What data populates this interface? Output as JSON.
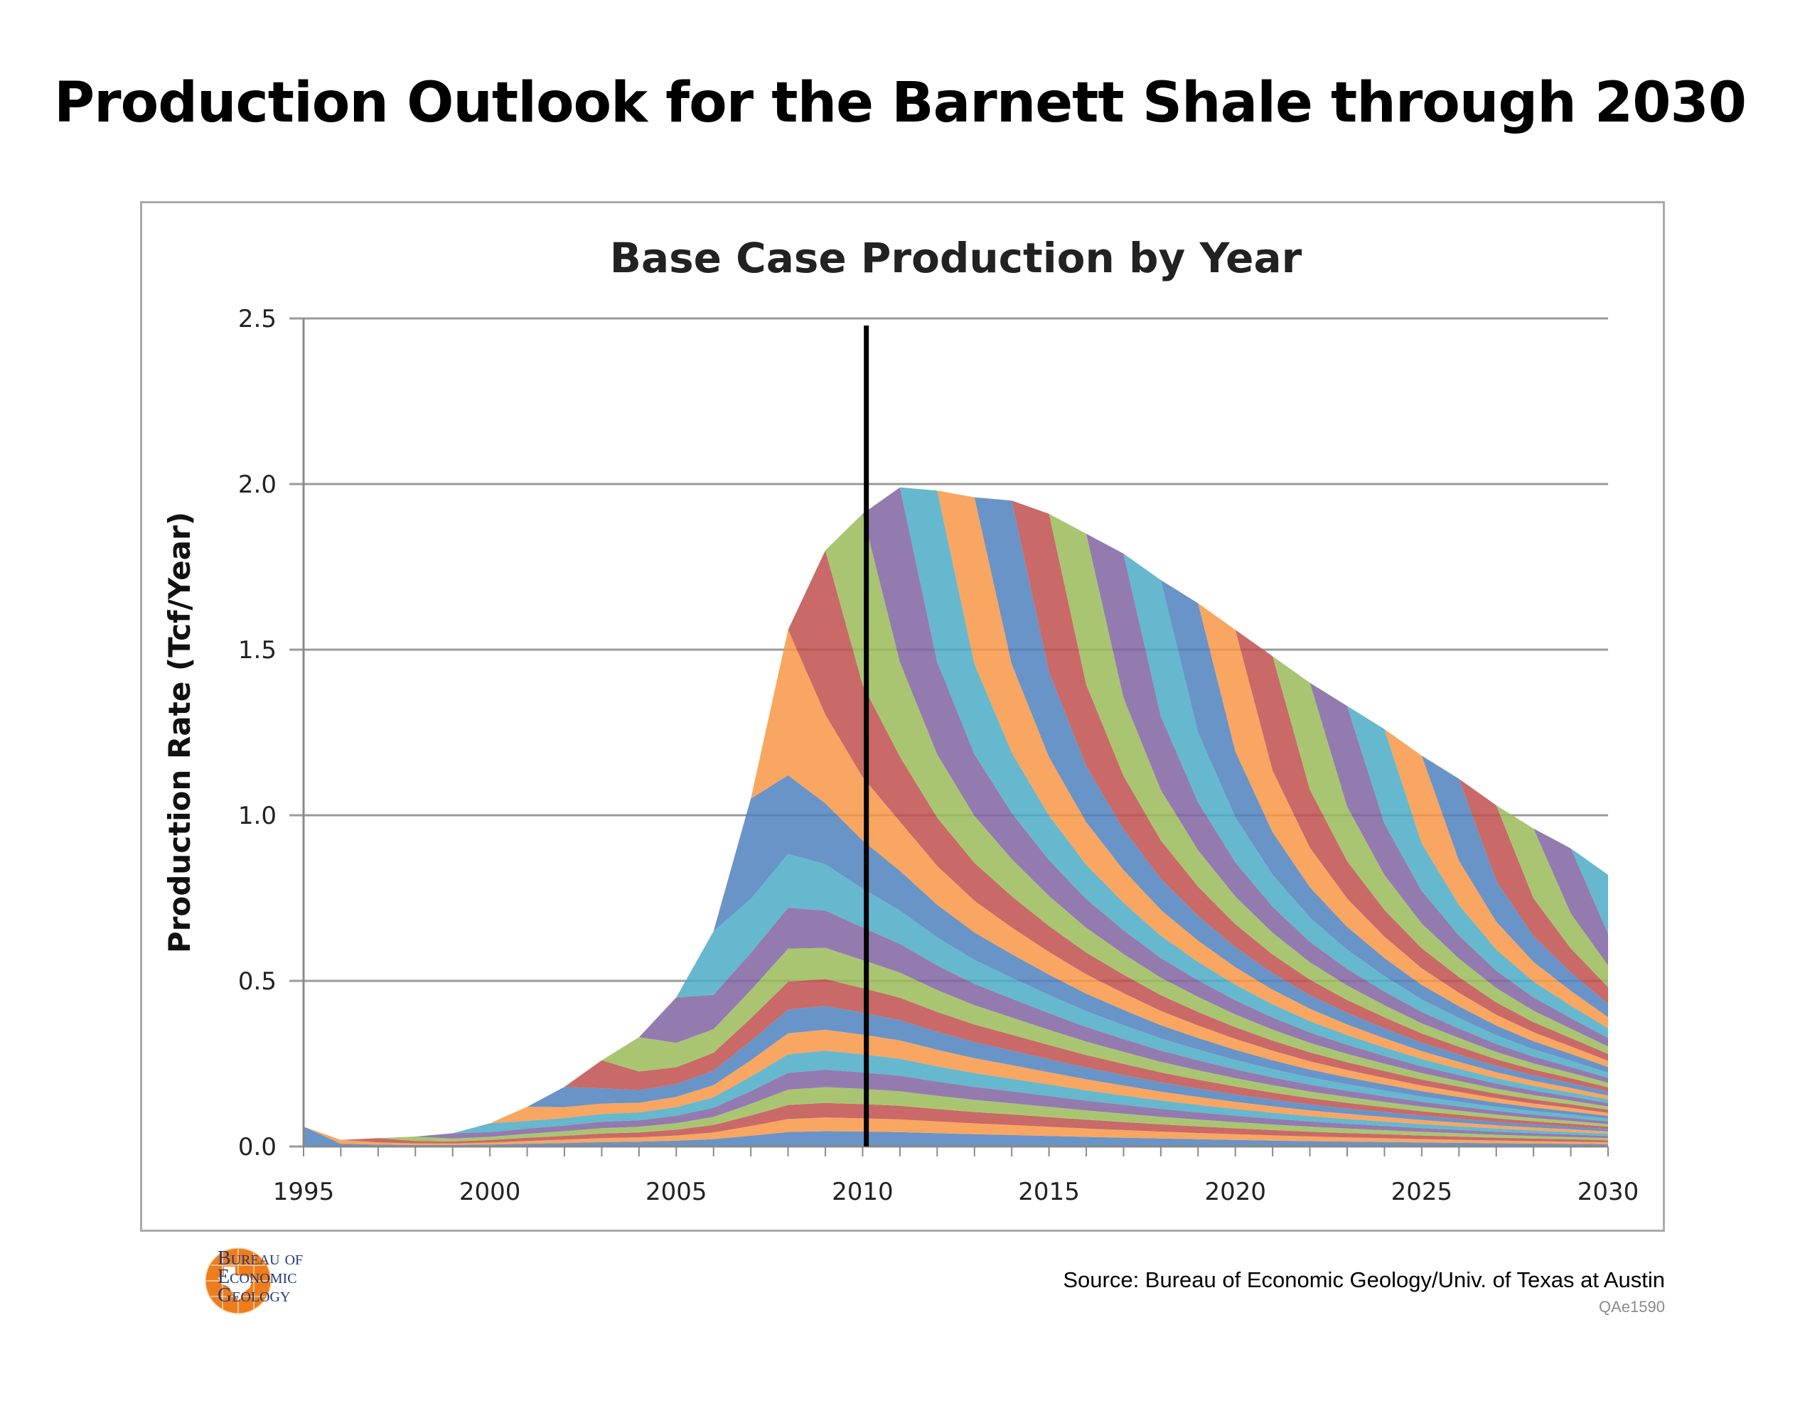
{
  "main_title": "Production Outlook for the Barnett Shale through 2030",
  "source": "Source: Bureau of Economic Geology/Univ. of Texas at Austin",
  "figure_code": "QAe1590",
  "logo": {
    "lines": [
      "Bureau of",
      "Economic",
      "Geology"
    ]
  },
  "chart_data": {
    "type": "area",
    "stacked": true,
    "title": "Base Case Production by Year",
    "xlabel": "",
    "ylabel": "Production Rate (Tcf/Year)",
    "xlim": [
      1995,
      2030
    ],
    "ylim": [
      0,
      2.5
    ],
    "xticks": [
      "1995",
      "2000",
      "2005",
      "2010",
      "2015",
      "2020",
      "2025",
      "2030"
    ],
    "yticks": [
      "0.0",
      "0.5",
      "1.0",
      "1.5",
      "2.0",
      "2.5"
    ],
    "grid": "horizontal",
    "legend": "none",
    "reference_line_x": 2010.1,
    "total_envelope": {
      "x": [
        1995,
        1996,
        1997,
        1998,
        1999,
        2000,
        2001,
        2002,
        2003,
        2004,
        2005,
        2006,
        2007,
        2008,
        2009,
        2010,
        2011,
        2012,
        2013,
        2014,
        2015,
        2016,
        2017,
        2018,
        2019,
        2020,
        2021,
        2022,
        2023,
        2024,
        2025,
        2026,
        2027,
        2028,
        2029,
        2030
      ],
      "y": [
        0.06,
        0.02,
        0.025,
        0.03,
        0.04,
        0.07,
        0.12,
        0.18,
        0.26,
        0.33,
        0.45,
        0.65,
        1.05,
        1.56,
        1.8,
        1.91,
        1.99,
        1.98,
        1.96,
        1.95,
        1.91,
        1.85,
        1.79,
        1.71,
        1.64,
        1.56,
        1.48,
        1.4,
        1.33,
        1.26,
        1.18,
        1.11,
        1.03,
        0.96,
        0.9,
        0.82
      ]
    },
    "cohort_start_years": [
      1995,
      1996,
      1997,
      1998,
      1999,
      2000,
      2001,
      2002,
      2003,
      2004,
      2005,
      2006,
      2007,
      2008,
      2009,
      2010,
      2011,
      2012,
      2013,
      2014,
      2015,
      2016,
      2017,
      2018,
      2019,
      2020,
      2021,
      2022,
      2023,
      2024,
      2025,
      2026,
      2027,
      2028,
      2029,
      2030
    ],
    "colors": [
      "#4f81bd",
      "#f79646",
      "#c0504d",
      "#9bbb59",
      "#8064a2",
      "#4bacc6",
      "#f79646",
      "#4f81bd",
      "#c0504d",
      "#9bbb59",
      "#8064a2",
      "#4bacc6"
    ]
  }
}
